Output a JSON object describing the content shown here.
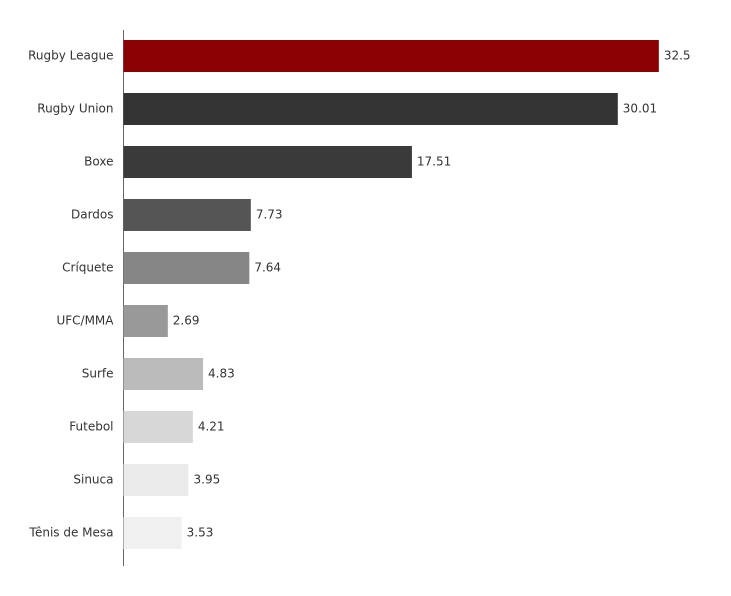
{
  "chart_data": {
    "type": "barh",
    "categories": [
      "Rugby League",
      "Rugby Union",
      "Boxe",
      "Dardos",
      "Críquete",
      "UFC/MMA",
      "Surfe",
      "Futebol",
      "Sinuca",
      "Tênis de Mesa"
    ],
    "values": [
      32.5,
      30.01,
      17.51,
      7.73,
      7.64,
      2.69,
      4.83,
      4.21,
      3.95,
      3.53
    ],
    "colors": [
      "#8b0000",
      "#333333",
      "#3a3a3a",
      "#555555",
      "#868686",
      "#999999",
      "#bbbbbb",
      "#d7d7d7",
      "#ebebeb",
      "#f0f0f0"
    ],
    "xlim": [
      0,
      35
    ]
  }
}
